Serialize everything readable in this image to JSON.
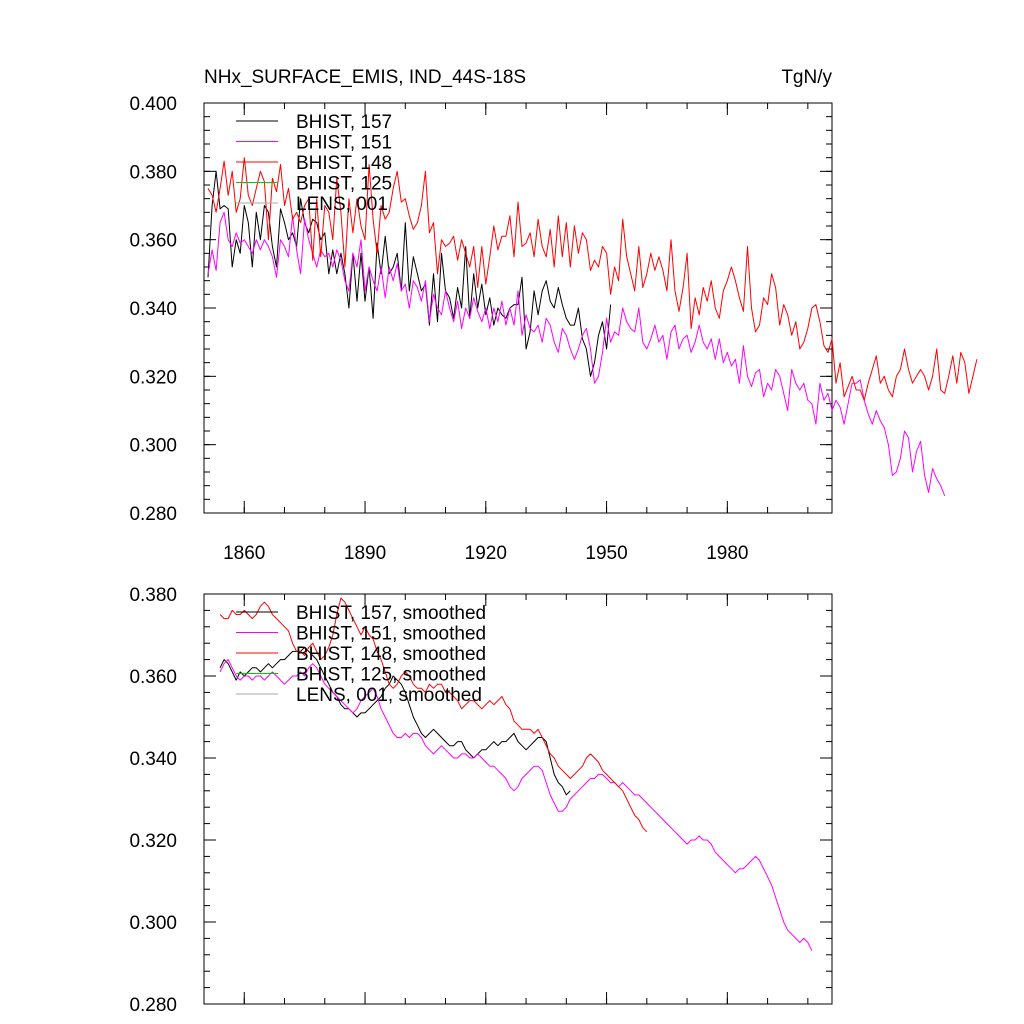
{
  "title": "NHx_SURFACE_EMIS, IND_44S-18S",
  "units": "TgN/y",
  "chart_data": [
    {
      "type": "line",
      "panel": "raw",
      "title": "NHx_SURFACE_EMIS, IND_44S-18S",
      "units": "TgN/y",
      "xlim": [
        1850,
        2006
      ],
      "ylim": [
        0.28,
        0.4
      ],
      "x_ticks": [
        1860,
        1890,
        1920,
        1950,
        1980
      ],
      "y_ticks": [
        0.28,
        0.3,
        0.32,
        0.34,
        0.36,
        0.38,
        0.4
      ],
      "y_tick_labels": [
        "0.280",
        "0.300",
        "0.320",
        "0.340",
        "0.360",
        "0.380",
        "0.400"
      ],
      "x_tick_labels": [
        "1860",
        "1890",
        "1920",
        "1950",
        "1980"
      ],
      "grid": false,
      "legend_position": "top-left",
      "series": [
        {
          "name": "BHIST, 157",
          "color": "#000000",
          "x_start": 1851,
          "values": [
            0.349,
            0.37,
            0.38,
            0.369,
            0.37,
            0.369,
            0.352,
            0.36,
            0.356,
            0.37,
            0.365,
            0.352,
            0.368,
            0.36,
            0.37,
            0.368,
            0.358,
            0.352,
            0.369,
            0.365,
            0.36,
            0.362,
            0.358,
            0.372,
            0.365,
            0.362,
            0.366,
            0.365,
            0.36,
            0.362,
            0.35,
            0.357,
            0.35,
            0.356,
            0.35,
            0.34,
            0.356,
            0.342,
            0.356,
            0.342,
            0.352,
            0.337,
            0.359,
            0.35,
            0.361,
            0.35,
            0.352,
            0.356,
            0.345,
            0.365,
            0.345,
            0.355,
            0.35,
            0.345,
            0.347,
            0.335,
            0.35,
            0.336,
            0.356,
            0.345,
            0.343,
            0.337,
            0.346,
            0.34,
            0.358,
            0.337,
            0.35,
            0.34,
            0.347,
            0.338,
            0.343,
            0.335,
            0.34,
            0.338,
            0.337,
            0.34,
            0.341,
            0.341,
            0.349,
            0.328,
            0.333,
            0.345,
            0.338,
            0.345,
            0.348,
            0.342,
            0.34,
            0.346,
            0.341,
            0.337,
            0.335,
            0.335,
            0.34,
            0.331,
            0.328,
            0.32,
            0.324,
            0.332,
            0.336,
            0.328,
            0.341
          ]
        },
        {
          "name": "BHIST, 151",
          "color": "#ff00ff",
          "x_start": 1851,
          "values": [
            0.35,
            0.357,
            0.351,
            0.365,
            0.368,
            0.36,
            0.358,
            0.362,
            0.359,
            0.36,
            0.358,
            0.356,
            0.36,
            0.357,
            0.36,
            0.358,
            0.355,
            0.349,
            0.36,
            0.358,
            0.355,
            0.367,
            0.357,
            0.35,
            0.366,
            0.36,
            0.356,
            0.352,
            0.357,
            0.355,
            0.356,
            0.352,
            0.357,
            0.354,
            0.348,
            0.345,
            0.356,
            0.352,
            0.36,
            0.345,
            0.352,
            0.348,
            0.345,
            0.352,
            0.343,
            0.352,
            0.348,
            0.353,
            0.345,
            0.347,
            0.34,
            0.348,
            0.346,
            0.342,
            0.348,
            0.336,
            0.344,
            0.34,
            0.338,
            0.345,
            0.34,
            0.336,
            0.342,
            0.334,
            0.34,
            0.337,
            0.343,
            0.339,
            0.336,
            0.34,
            0.334,
            0.34,
            0.336,
            0.342,
            0.335,
            0.34,
            0.335,
            0.345,
            0.332,
            0.338,
            0.334,
            0.333,
            0.335,
            0.33,
            0.337,
            0.335,
            0.33,
            0.327,
            0.334,
            0.332,
            0.328,
            0.325,
            0.328,
            0.332,
            0.334,
            0.328,
            0.318,
            0.32,
            0.327,
            0.337,
            0.33,
            0.333,
            0.332,
            0.34,
            0.336,
            0.334,
            0.333,
            0.34,
            0.33,
            0.328,
            0.331,
            0.335,
            0.33,
            0.332,
            0.325,
            0.333,
            0.335,
            0.328,
            0.331,
            0.332,
            0.327,
            0.33,
            0.335,
            0.33,
            0.328,
            0.331,
            0.325,
            0.331,
            0.324,
            0.327,
            0.323,
            0.325,
            0.318,
            0.329,
            0.32,
            0.317,
            0.321,
            0.322,
            0.314,
            0.318,
            0.316,
            0.322,
            0.32,
            0.315,
            0.31,
            0.322,
            0.318,
            0.316,
            0.318,
            0.313,
            0.312,
            0.306,
            0.318,
            0.313,
            0.315,
            0.31,
            0.313,
            0.311,
            0.306,
            0.312,
            0.318,
            0.318,
            0.319,
            0.313,
            0.309,
            0.306,
            0.31,
            0.307,
            0.305,
            0.3,
            0.291,
            0.292,
            0.296,
            0.304,
            0.302,
            0.292,
            0.298,
            0.301,
            0.291,
            0.286,
            0.293,
            0.29,
            0.288,
            0.285
          ]
        },
        {
          "name": "BHIST, 148",
          "color": "#ff0000",
          "x_start": 1851,
          "values": [
            0.375,
            0.373,
            0.368,
            0.375,
            0.383,
            0.373,
            0.38,
            0.368,
            0.372,
            0.384,
            0.373,
            0.37,
            0.375,
            0.38,
            0.377,
            0.36,
            0.378,
            0.374,
            0.382,
            0.37,
            0.375,
            0.366,
            0.368,
            0.365,
            0.37,
            0.372,
            0.354,
            0.372,
            0.355,
            0.37,
            0.368,
            0.36,
            0.378,
            0.368,
            0.352,
            0.372,
            0.362,
            0.372,
            0.364,
            0.36,
            0.382,
            0.366,
            0.356,
            0.37,
            0.366,
            0.368,
            0.375,
            0.38,
            0.371,
            0.372,
            0.367,
            0.363,
            0.365,
            0.37,
            0.38,
            0.362,
            0.365,
            0.35,
            0.36,
            0.358,
            0.359,
            0.361,
            0.354,
            0.36,
            0.356,
            0.352,
            0.358,
            0.346,
            0.358,
            0.347,
            0.355,
            0.364,
            0.357,
            0.361,
            0.361,
            0.367,
            0.355,
            0.371,
            0.358,
            0.359,
            0.362,
            0.355,
            0.366,
            0.358,
            0.355,
            0.363,
            0.352,
            0.367,
            0.355,
            0.365,
            0.352,
            0.364,
            0.356,
            0.362,
            0.36,
            0.351,
            0.354,
            0.352,
            0.358,
            0.356,
            0.344,
            0.352,
            0.348,
            0.366,
            0.355,
            0.35,
            0.345,
            0.358,
            0.346,
            0.35,
            0.356,
            0.351,
            0.355,
            0.351,
            0.345,
            0.36,
            0.345,
            0.339,
            0.346,
            0.356,
            0.334,
            0.343,
            0.338,
            0.346,
            0.342,
            0.348,
            0.34,
            0.337,
            0.345,
            0.348,
            0.352,
            0.348,
            0.343,
            0.339,
            0.358,
            0.34,
            0.333,
            0.335,
            0.343,
            0.341,
            0.35,
            0.346,
            0.335,
            0.341,
            0.338,
            0.332,
            0.336,
            0.328,
            0.33,
            0.334,
            0.34,
            0.341,
            0.336,
            0.329,
            0.327,
            0.331,
            0.318,
            0.324,
            0.314,
            0.317,
            0.32,
            0.316,
            0.316,
            0.313,
            0.318,
            0.322,
            0.326,
            0.318,
            0.32,
            0.316,
            0.314,
            0.32,
            0.322,
            0.328,
            0.322,
            0.318,
            0.32,
            0.322,
            0.32,
            0.316,
            0.32,
            0.328,
            0.316,
            0.315,
            0.32,
            0.326,
            0.318,
            0.327,
            0.324,
            0.315,
            0.32,
            0.325
          ]
        },
        {
          "name": "BHIST, 125",
          "color": "#00cc00",
          "x_start": 1851,
          "values": []
        },
        {
          "name": "LENS, 001",
          "color": "#aaaaaa",
          "x_start": 1851,
          "values": []
        }
      ]
    },
    {
      "type": "line",
      "panel": "smoothed",
      "xlim": [
        1850,
        2006
      ],
      "ylim": [
        0.28,
        0.38
      ],
      "x_ticks": [
        1860,
        1890,
        1920,
        1950,
        1980
      ],
      "y_ticks": [
        0.28,
        0.3,
        0.32,
        0.34,
        0.36,
        0.38
      ],
      "y_tick_labels": [
        "0.280",
        "0.300",
        "0.320",
        "0.340",
        "0.360",
        "0.380"
      ],
      "grid": false,
      "legend_position": "top-left",
      "series": [
        {
          "name": "BHIST, 157, smoothed",
          "color": "#000000",
          "x_start": 1854,
          "values": [
            0.362,
            0.364,
            0.363,
            0.361,
            0.359,
            0.361,
            0.36,
            0.361,
            0.362,
            0.362,
            0.361,
            0.362,
            0.363,
            0.362,
            0.363,
            0.364,
            0.364,
            0.365,
            0.366,
            0.366,
            0.366,
            0.367,
            0.366,
            0.365,
            0.364,
            0.362,
            0.36,
            0.358,
            0.356,
            0.355,
            0.353,
            0.352,
            0.352,
            0.351,
            0.35,
            0.351,
            0.351,
            0.352,
            0.353,
            0.354,
            0.355,
            0.357,
            0.358,
            0.36,
            0.359,
            0.358,
            0.356,
            0.353,
            0.35,
            0.348,
            0.346,
            0.345,
            0.346,
            0.347,
            0.346,
            0.345,
            0.344,
            0.343,
            0.343,
            0.344,
            0.344,
            0.342,
            0.341,
            0.34,
            0.341,
            0.342,
            0.342,
            0.343,
            0.344,
            0.343,
            0.344,
            0.344,
            0.345,
            0.346,
            0.344,
            0.343,
            0.342,
            0.343,
            0.344,
            0.345,
            0.345,
            0.344,
            0.34,
            0.336,
            0.334,
            0.333,
            0.331,
            0.332
          ]
        },
        {
          "name": "BHIST, 151, smoothed",
          "color": "#ff00ff",
          "x_start": 1854,
          "values": [
            0.361,
            0.363,
            0.364,
            0.362,
            0.36,
            0.359,
            0.36,
            0.36,
            0.359,
            0.36,
            0.36,
            0.359,
            0.36,
            0.361,
            0.36,
            0.359,
            0.358,
            0.359,
            0.36,
            0.36,
            0.361,
            0.36,
            0.362,
            0.363,
            0.362,
            0.36,
            0.358,
            0.357,
            0.356,
            0.355,
            0.354,
            0.353,
            0.352,
            0.351,
            0.352,
            0.354,
            0.355,
            0.356,
            0.357,
            0.355,
            0.352,
            0.35,
            0.348,
            0.346,
            0.345,
            0.345,
            0.346,
            0.345,
            0.346,
            0.346,
            0.345,
            0.343,
            0.342,
            0.341,
            0.342,
            0.343,
            0.342,
            0.341,
            0.34,
            0.34,
            0.341,
            0.341,
            0.34,
            0.34,
            0.341,
            0.34,
            0.339,
            0.338,
            0.338,
            0.337,
            0.336,
            0.335,
            0.333,
            0.332,
            0.333,
            0.335,
            0.336,
            0.337,
            0.338,
            0.338,
            0.337,
            0.334,
            0.331,
            0.329,
            0.327,
            0.327,
            0.328,
            0.33,
            0.331,
            0.332,
            0.333,
            0.334,
            0.335,
            0.335,
            0.336,
            0.336,
            0.335,
            0.334,
            0.334,
            0.333,
            0.334,
            0.333,
            0.332,
            0.331,
            0.331,
            0.33,
            0.329,
            0.328,
            0.327,
            0.326,
            0.325,
            0.324,
            0.323,
            0.322,
            0.321,
            0.32,
            0.319,
            0.32,
            0.32,
            0.321,
            0.32,
            0.32,
            0.319,
            0.317,
            0.316,
            0.315,
            0.314,
            0.313,
            0.312,
            0.313,
            0.313,
            0.314,
            0.315,
            0.316,
            0.315,
            0.313,
            0.311,
            0.309,
            0.306,
            0.303,
            0.3,
            0.298,
            0.297,
            0.296,
            0.295,
            0.296,
            0.295,
            0.293
          ]
        },
        {
          "name": "BHIST, 148, smoothed",
          "color": "#ff0000",
          "x_start": 1854,
          "values": [
            0.375,
            0.374,
            0.374,
            0.376,
            0.375,
            0.375,
            0.376,
            0.375,
            0.374,
            0.375,
            0.377,
            0.378,
            0.377,
            0.375,
            0.374,
            0.373,
            0.372,
            0.371,
            0.368,
            0.366,
            0.366,
            0.365,
            0.367,
            0.368,
            0.366,
            0.364,
            0.365,
            0.367,
            0.37,
            0.375,
            0.379,
            0.378,
            0.376,
            0.374,
            0.372,
            0.37,
            0.372,
            0.37,
            0.369,
            0.366,
            0.364,
            0.361,
            0.358,
            0.357,
            0.358,
            0.36,
            0.361,
            0.36,
            0.358,
            0.357,
            0.357,
            0.356,
            0.358,
            0.357,
            0.358,
            0.358,
            0.356,
            0.356,
            0.355,
            0.354,
            0.352,
            0.353,
            0.354,
            0.354,
            0.353,
            0.352,
            0.353,
            0.354,
            0.353,
            0.354,
            0.355,
            0.353,
            0.352,
            0.349,
            0.348,
            0.347,
            0.347,
            0.347,
            0.346,
            0.347,
            0.345,
            0.343,
            0.341,
            0.34,
            0.338,
            0.337,
            0.336,
            0.335,
            0.336,
            0.337,
            0.338,
            0.34,
            0.341,
            0.34,
            0.339,
            0.337,
            0.336,
            0.335,
            0.334,
            0.333,
            0.332,
            0.33,
            0.328,
            0.326,
            0.325,
            0.323,
            0.322
          ]
        },
        {
          "name": "BHIST, 125, smoothed",
          "color": "#00cc00",
          "x_start": 1854,
          "values": []
        },
        {
          "name": "LENS, 001, smoothed",
          "color": "#aaaaaa",
          "x_start": 1854,
          "values": []
        }
      ]
    }
  ]
}
